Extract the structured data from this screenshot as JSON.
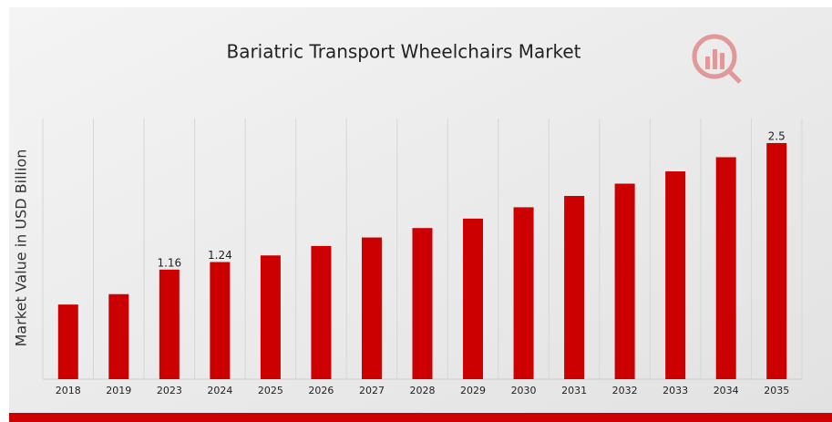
{
  "chart_data": {
    "type": "bar",
    "title": "Bariatric Transport Wheelchairs Market",
    "y_label": "Market Value in USD Billion",
    "categories": [
      "2018",
      "2019",
      "2023",
      "2024",
      "2025",
      "2026",
      "2027",
      "2028",
      "2029",
      "2030",
      "2031",
      "2032",
      "2033",
      "2034",
      "2035"
    ],
    "values": [
      0.79,
      0.9,
      1.16,
      1.24,
      1.31,
      1.41,
      1.5,
      1.6,
      1.7,
      1.82,
      1.94,
      2.07,
      2.2,
      2.35,
      2.5
    ],
    "value_labels": [
      null,
      null,
      "1.16",
      "1.24",
      null,
      null,
      null,
      null,
      null,
      null,
      null,
      null,
      null,
      null,
      "2.5"
    ],
    "color": "#cc0000",
    "ylim": [
      0,
      2.76
    ]
  }
}
